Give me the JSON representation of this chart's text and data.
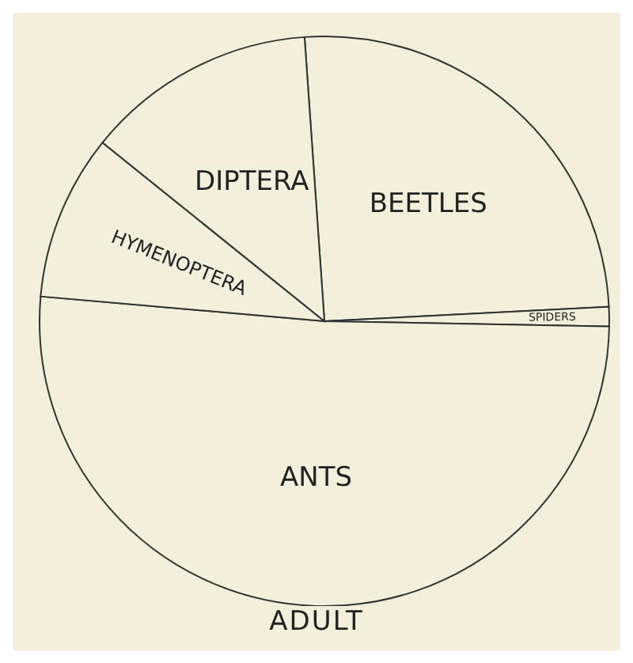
{
  "chart_data": {
    "type": "pie",
    "title": "ADULT",
    "categories": [
      "BEETLES",
      "SPIDERS",
      "ANTS",
      "HYMENOPTERA",
      "DIPTERA"
    ],
    "values": [
      25.3,
      1.1,
      51.1,
      9.4,
      13.1
    ],
    "colors": [
      "#f4efdc",
      "#f4efdc",
      "#f4efdc",
      "#f4efdc",
      "#f4efdc"
    ]
  }
}
